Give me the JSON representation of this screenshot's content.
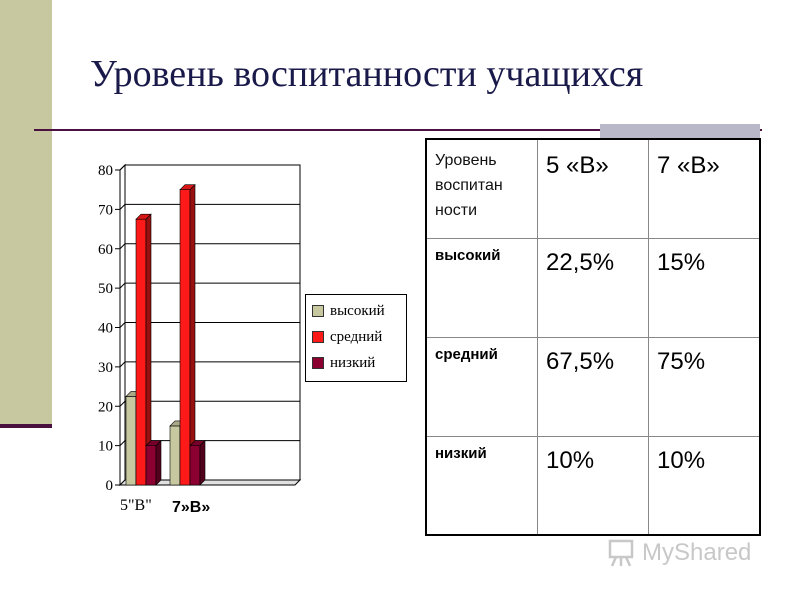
{
  "slide": {
    "title": "Уровень воспитанности учащихся"
  },
  "chart_data": {
    "type": "bar",
    "categories": [
      "5\"В\"",
      "7»В»"
    ],
    "series": [
      {
        "name": "высокий",
        "values": [
          22.5,
          15
        ],
        "color": "#c8c8a0"
      },
      {
        "name": "средний",
        "values": [
          67.5,
          75
        ],
        "color": "#ff1a1a"
      },
      {
        "name": "низкий",
        "values": [
          10,
          10
        ],
        "color": "#8b0030"
      }
    ],
    "ylim": [
      0,
      80
    ],
    "yticks": [
      0,
      10,
      20,
      30,
      40,
      50,
      60,
      70,
      80
    ],
    "grid": true,
    "legend_position": "right"
  },
  "table": {
    "header": {
      "label": "Уровень воспитанности",
      "label_lines": [
        "Уровень",
        "воспитан",
        "ности"
      ],
      "col1": "5 «В»",
      "col2": "7 «В»"
    },
    "rows": [
      {
        "label": "высокий",
        "col1": "22,5%",
        "col2": "15%"
      },
      {
        "label": "средний",
        "col1": "67,5%",
        "col2": "75%"
      },
      {
        "label": "низкий",
        "col1": "10%",
        "col2": "10%"
      }
    ]
  },
  "watermark": {
    "text": "MyShared",
    "icon": "presentation-board-icon"
  }
}
